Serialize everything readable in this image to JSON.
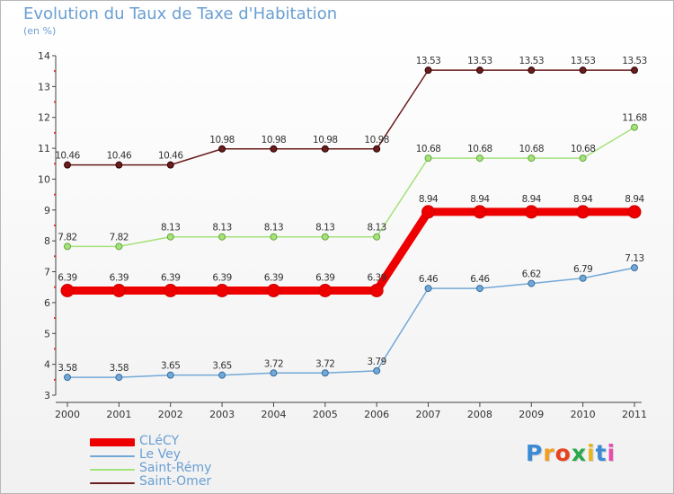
{
  "chart_data": {
    "type": "line",
    "title": "Evolution du Taux de Taxe d'Habitation",
    "subtitle": "(en %)",
    "categories": [
      "2000",
      "2001",
      "2002",
      "2003",
      "2004",
      "2005",
      "2006",
      "2007",
      "2008",
      "2009",
      "2010",
      "2011"
    ],
    "ylim": [
      3,
      14
    ],
    "yticks": [
      3,
      4,
      5,
      6,
      7,
      8,
      9,
      10,
      11,
      12,
      13,
      14
    ],
    "grid": false,
    "legend_position": "bottom-left",
    "series": [
      {
        "name": "CLéCY",
        "color": "#ee0000",
        "emphasis": true,
        "values": [
          6.39,
          6.39,
          6.39,
          6.39,
          6.39,
          6.39,
          6.39,
          8.94,
          8.94,
          8.94,
          8.94,
          8.94
        ],
        "labels": [
          "6.39",
          "6.39",
          "6.39",
          "6.39",
          "6.39",
          "6.39",
          "6.39",
          "8.94",
          "8.94",
          "8.94",
          "8.94",
          "8.94"
        ]
      },
      {
        "name": "Le Vey",
        "color": "#72a8d8",
        "emphasis": false,
        "values": [
          3.58,
          3.58,
          3.65,
          3.65,
          3.72,
          3.72,
          3.79,
          6.46,
          6.46,
          6.62,
          6.79,
          7.13
        ],
        "labels": [
          "3.58",
          "3.58",
          "3.65",
          "3.65",
          "3.72",
          "3.72",
          "3.79",
          "6.46",
          "6.46",
          "6.62",
          "6.79",
          "7.13"
        ]
      },
      {
        "name": "Saint-Rémy",
        "color": "#a4e27a",
        "emphasis": false,
        "values": [
          7.82,
          7.82,
          8.13,
          8.13,
          8.13,
          8.13,
          8.13,
          10.68,
          10.68,
          10.68,
          10.68,
          11.68
        ],
        "labels": [
          "7.82",
          "7.82",
          "8.13",
          "8.13",
          "8.13",
          "8.13",
          "8.13",
          "10.68",
          "10.68",
          "10.68",
          "10.68",
          "11.68"
        ]
      },
      {
        "name": "Saint-Omer",
        "color": "#6a1d1d",
        "emphasis": false,
        "values": [
          10.46,
          10.46,
          10.46,
          10.98,
          10.98,
          10.98,
          10.98,
          13.53,
          13.53,
          13.53,
          13.53,
          13.53
        ],
        "labels": [
          "10.46",
          "10.46",
          "10.46",
          "10.98",
          "10.98",
          "10.98",
          "10.98",
          "13.53",
          "13.53",
          "13.53",
          "13.53",
          "13.53"
        ]
      }
    ]
  },
  "logo": {
    "text": "Proxiti",
    "letters": [
      "P",
      "r",
      "o",
      "x",
      "i",
      "t",
      "i"
    ],
    "colors": [
      "#3a8ad6",
      "#f39c1e",
      "#e8421e",
      "#2aa84a",
      "#e8b51e",
      "#3a8ad6",
      "#e84ab0"
    ]
  }
}
